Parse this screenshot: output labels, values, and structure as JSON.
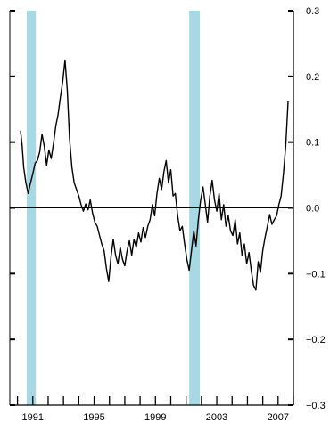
{
  "chart_data": {
    "type": "line",
    "xlim": [
      1989.5,
      2008.0
    ],
    "ylim": [
      -0.3,
      0.3
    ],
    "x_ticks": [
      1991,
      1995,
      1999,
      2003,
      2007
    ],
    "x_tick_labels": [
      "1991",
      "1995",
      "1999",
      "2003",
      "2007"
    ],
    "y_ticks": [
      0.3,
      0.2,
      0.1,
      0.0,
      -0.1,
      -0.2,
      -0.3
    ],
    "y_tick_labels": [
      "0.3",
      "0.2",
      "0.1",
      "0.0",
      "−0.1",
      "−0.2",
      "−0.3"
    ],
    "y_axis_side": "right",
    "grid": false,
    "reference_line": 0.0,
    "shaded_periods": [
      [
        1990.6,
        1991.2
      ],
      [
        2001.2,
        2001.9
      ]
    ],
    "colors": {
      "line": "#000000",
      "shading": "#a8d8e4",
      "axis": "#000000"
    },
    "series": [
      {
        "x": [
          1990.2,
          1990.3,
          1990.4,
          1990.55,
          1990.7,
          1990.85,
          1991.0,
          1991.15,
          1991.3,
          1991.45,
          1991.6,
          1991.75,
          1991.9,
          1992.05,
          1992.2,
          1992.35,
          1992.5,
          1992.65,
          1992.8,
          1992.95,
          1993.1,
          1993.25,
          1993.4,
          1993.55,
          1993.7,
          1993.85,
          1994.0,
          1994.15,
          1994.3,
          1994.45,
          1994.6,
          1994.75,
          1994.9,
          1995.05,
          1995.2,
          1995.35,
          1995.5,
          1995.65,
          1995.8,
          1995.95,
          1996.1,
          1996.25,
          1996.4,
          1996.55,
          1996.7,
          1996.85,
          1997.0,
          1997.15,
          1997.3,
          1997.45,
          1997.6,
          1997.75,
          1997.9,
          1998.05,
          1998.2,
          1998.35,
          1998.5,
          1998.65,
          1998.8,
          1998.95,
          1999.1,
          1999.25,
          1999.4,
          1999.55,
          1999.7,
          1999.85,
          2000.0,
          2000.15,
          2000.3,
          2000.45,
          2000.6,
          2000.75,
          2000.9,
          2001.05,
          2001.2,
          2001.35,
          2001.5,
          2001.65,
          2001.8,
          2001.95,
          2002.1,
          2002.25,
          2002.4,
          2002.55,
          2002.7,
          2002.85,
          2003.0,
          2003.15,
          2003.3,
          2003.45,
          2003.6,
          2003.75,
          2003.9,
          2004.05,
          2004.2,
          2004.35,
          2004.5,
          2004.65,
          2004.8,
          2004.95,
          2005.1,
          2005.25,
          2005.4,
          2005.55,
          2005.7,
          2005.85,
          2006.0,
          2006.15,
          2006.3,
          2006.45,
          2006.6,
          2006.75,
          2006.9,
          2007.05,
          2007.2,
          2007.35,
          2007.5,
          2007.65
        ],
        "y": [
          0.117,
          0.095,
          0.062,
          0.038,
          0.022,
          0.038,
          0.052,
          0.068,
          0.072,
          0.085,
          0.112,
          0.093,
          0.065,
          0.088,
          0.075,
          0.098,
          0.125,
          0.142,
          0.168,
          0.192,
          0.225,
          0.178,
          0.105,
          0.062,
          0.038,
          0.028,
          0.018,
          0.005,
          -0.005,
          0.006,
          -0.003,
          0.012,
          -0.008,
          -0.022,
          -0.028,
          -0.042,
          -0.055,
          -0.065,
          -0.092,
          -0.112,
          -0.075,
          -0.048,
          -0.072,
          -0.085,
          -0.06,
          -0.078,
          -0.088,
          -0.065,
          -0.05,
          -0.072,
          -0.048,
          -0.06,
          -0.038,
          -0.052,
          -0.03,
          -0.045,
          -0.028,
          -0.018,
          0.005,
          -0.012,
          0.022,
          0.045,
          0.028,
          0.055,
          0.072,
          0.038,
          0.058,
          0.018,
          0.022,
          -0.012,
          -0.035,
          -0.028,
          -0.055,
          -0.078,
          -0.095,
          -0.065,
          -0.035,
          -0.058,
          -0.018,
          0.012,
          0.032,
          0.005,
          -0.022,
          0.018,
          0.042,
          0.012,
          -0.005,
          0.022,
          -0.018,
          0.005,
          -0.028,
          -0.012,
          -0.035,
          -0.042,
          -0.018,
          -0.055,
          -0.038,
          -0.072,
          -0.055,
          -0.085,
          -0.068,
          -0.095,
          -0.118,
          -0.125,
          -0.082,
          -0.098,
          -0.065,
          -0.045,
          -0.028,
          -0.01,
          -0.025,
          -0.018,
          -0.012,
          0.005,
          0.018,
          0.052,
          0.095,
          0.162
        ]
      }
    ]
  }
}
